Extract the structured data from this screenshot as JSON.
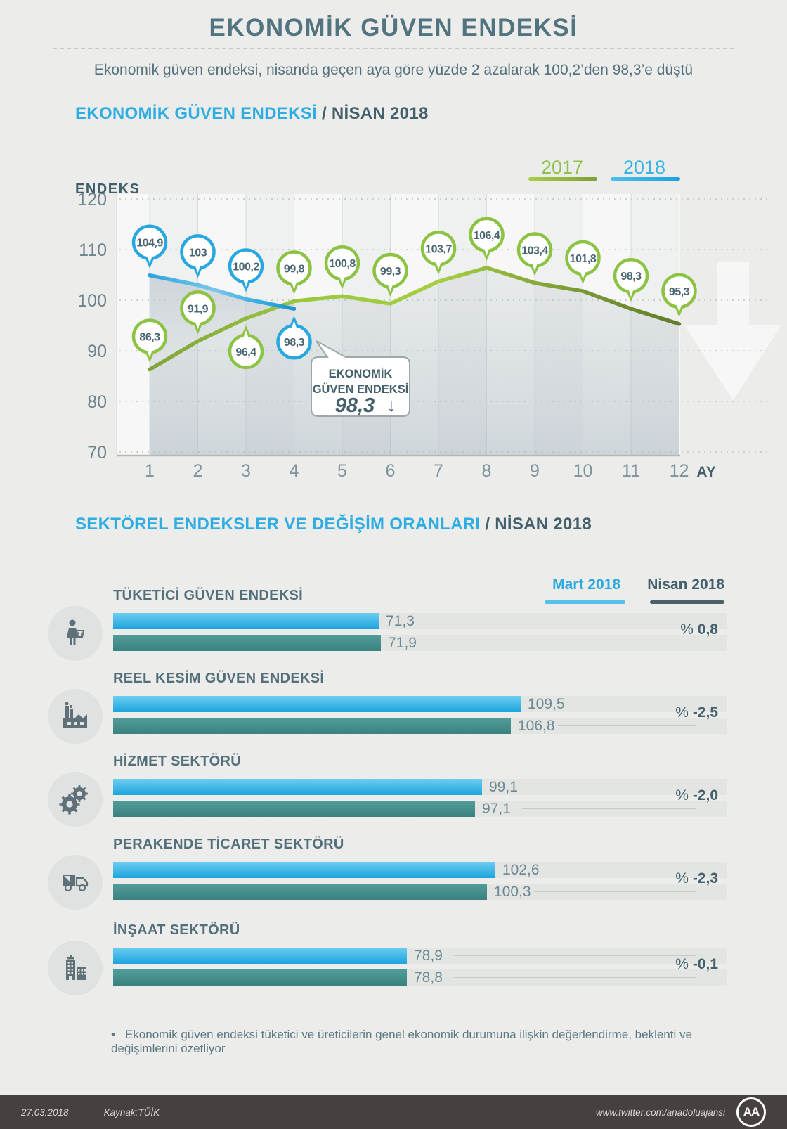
{
  "header": {
    "title": "EKONOMİK GÜVEN ENDEKSİ",
    "subtitle": "Ekonomik güven endeksi, nisanda geçen aya göre yüzde 2 azalarak 100,2’den 98,3’e düştü"
  },
  "chart_section": {
    "title_highlight": "EKONOMİK GÜVEN ENDEKSİ",
    "title_rest": " / NİSAN 2018",
    "y_axis_title": "ENDEKS",
    "x_axis_title": "AY"
  },
  "sector_section": {
    "title_highlight": "SEKTÖREL ENDEKSLER VE DEĞİŞİM ORANLARI",
    "title_rest": " / NİSAN 2018",
    "legend_mart": "Mart 2018",
    "legend_nisan": "Nisan 2018",
    "colors": {
      "mart": "#2bade0",
      "nisan": "#3f8a89"
    }
  },
  "chart_data": [
    {
      "type": "line",
      "title": "EKONOMİK GÜVEN ENDEKSİ / NİSAN 2018",
      "x": [
        1,
        2,
        3,
        4,
        5,
        6,
        7,
        8,
        9,
        10,
        11,
        12
      ],
      "xlabel": "AY",
      "ylabel": "ENDEKS",
      "ylim": [
        70,
        120
      ],
      "yticks": [
        120,
        110,
        100,
        90,
        80,
        70
      ],
      "grid": true,
      "legend_position": "top-right",
      "series": [
        {
          "name": "2017",
          "color": "#8cc345",
          "values": [
            86.3,
            91.9,
            96.4,
            99.8,
            100.8,
            99.3,
            103.7,
            106.4,
            103.4,
            101.8,
            98.3,
            95.3
          ],
          "point_labels": [
            "86,3",
            "91,9",
            "96,4",
            "99,8",
            "100,8",
            "99,3",
            "103,7",
            "106,4",
            "103,4",
            "101,8",
            "98,3",
            "95,3"
          ],
          "label_below": [
            false,
            false,
            true,
            false,
            false,
            false,
            false,
            false,
            false,
            false,
            false,
            false
          ]
        },
        {
          "name": "2018",
          "color": "#29a8e0",
          "values": [
            104.9,
            103,
            100.2,
            98.3
          ],
          "point_labels": [
            "104,9",
            "103",
            "100,2",
            "98,3"
          ],
          "label_below": [
            false,
            false,
            false,
            true
          ]
        }
      ],
      "callout": {
        "line1": "EKONOMİK",
        "line2": "GÜVEN ENDEKSİ",
        "value": "98,3",
        "arrow": "↓"
      }
    },
    {
      "type": "bar",
      "orientation": "horizontal",
      "series_names": [
        "Mart 2018",
        "Nisan 2018"
      ],
      "rows": [
        {
          "label": "TÜKETİCİ GÜVEN ENDEKSİ",
          "icon": "consumer-icon",
          "values": [
            71.3,
            71.9
          ],
          "value_labels": [
            "71,3",
            "71,9"
          ],
          "change_sign": "%",
          "change_value": "0,8"
        },
        {
          "label": "REEL KESİM GÜVEN ENDEKSİ",
          "icon": "factory-icon",
          "values": [
            109.5,
            106.8
          ],
          "value_labels": [
            "109,5",
            "106,8"
          ],
          "change_sign": "%",
          "change_value": "-2,5"
        },
        {
          "label": "HİZMET SEKTÖRÜ",
          "icon": "gears-icon",
          "values": [
            99.1,
            97.1
          ],
          "value_labels": [
            "99,1",
            "97,1"
          ],
          "change_sign": "%",
          "change_value": "-2,0"
        },
        {
          "label": "PERAKENDE TİCARET SEKTÖRÜ",
          "icon": "truck-icon",
          "values": [
            102.6,
            100.3
          ],
          "value_labels": [
            "102,6",
            "100,3"
          ],
          "change_sign": "%",
          "change_value": "-2,3"
        },
        {
          "label": "İNŞAAT SEKTÖRÜ",
          "icon": "buildings-icon",
          "values": [
            78.9,
            78.8
          ],
          "value_labels": [
            "78,9",
            "78,8"
          ],
          "change_sign": "%",
          "change_value": "-0,1"
        }
      ]
    }
  ],
  "footnote": "Ekonomik güven endeksi tüketici ve üreticilerin genel ekonomik durumuna ilişkin değerlendirme, beklenti ve değişimlerini özetliyor",
  "footer": {
    "date": "27.03.2018",
    "source": "Kaynak:TÜİK",
    "url": "www.twitter.com/anadoluajansi",
    "logo": "AA"
  }
}
